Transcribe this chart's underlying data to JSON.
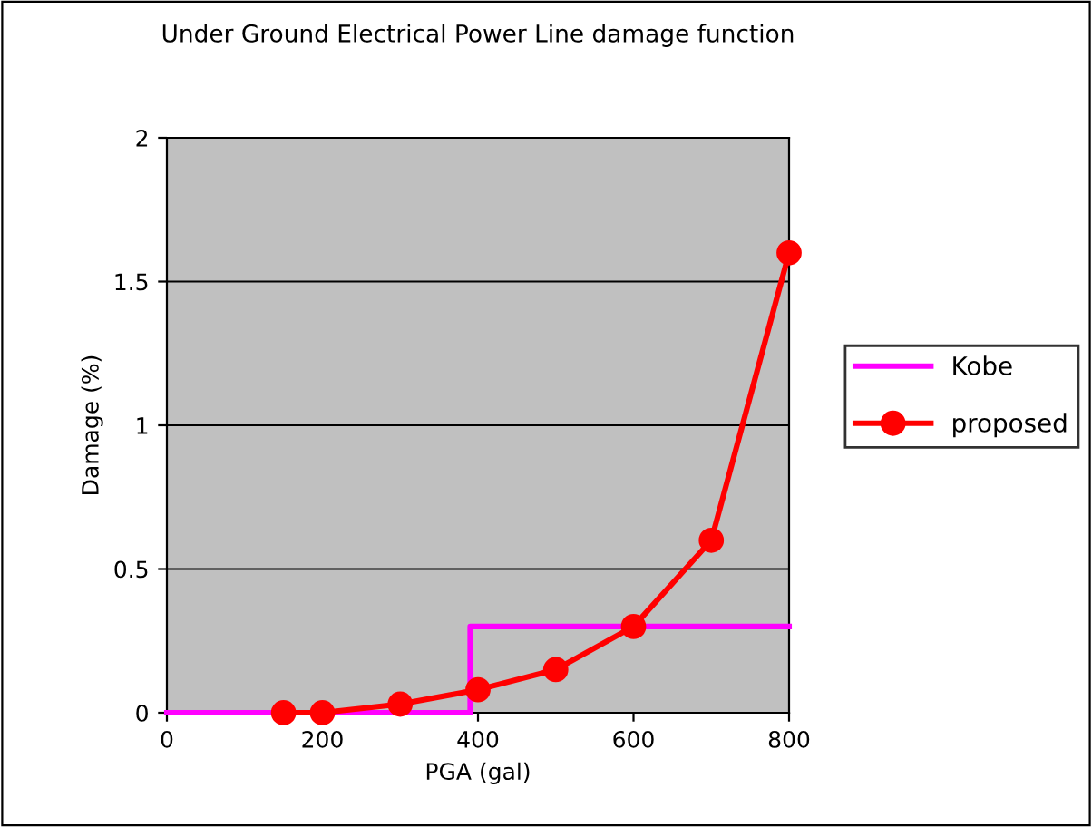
{
  "chart_data": {
    "type": "line",
    "title": "Under Ground Electrical Power Line damage function",
    "xlabel": "PGA (gal)",
    "ylabel": "Damage (%)",
    "series": [
      {
        "name": "Kobe",
        "type": "step",
        "color": "#ff00ff",
        "marker": "none",
        "x": [
          0,
          390,
          800
        ],
        "values": [
          0,
          0.3,
          0.3
        ]
      },
      {
        "name": "proposed",
        "color": "#ff0000",
        "marker": "circle",
        "x": [
          150,
          200,
          300,
          400,
          500,
          600,
          700,
          800
        ],
        "values": [
          0,
          0,
          0.03,
          0.08,
          0.15,
          0.3,
          0.6,
          1.6
        ]
      }
    ],
    "xlim": [
      0,
      800
    ],
    "ylim": [
      0,
      2
    ],
    "xticks": [
      0,
      200,
      400,
      600,
      800
    ],
    "yticks": [
      0,
      0.5,
      1,
      1.5,
      2
    ],
    "grid": "y",
    "legend": "right"
  }
}
